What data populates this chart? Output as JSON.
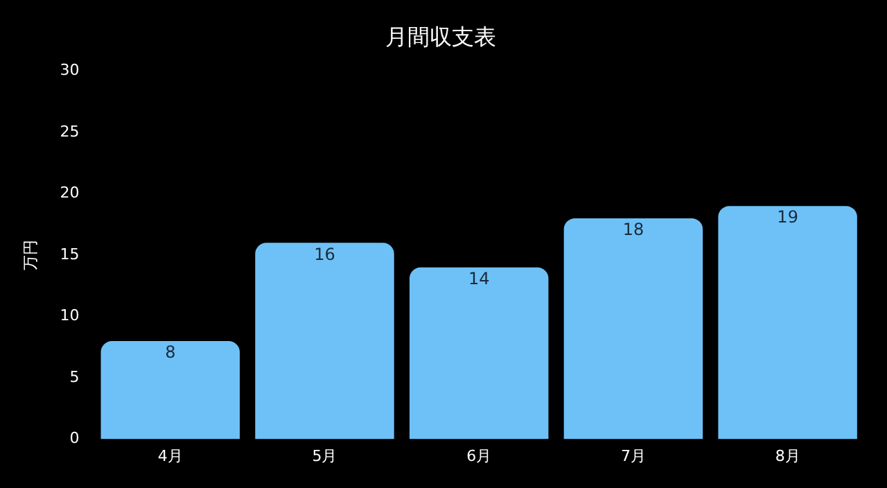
{
  "chart_data": {
    "type": "bar",
    "title": "月間収支表",
    "ylabel": "万円",
    "categories": [
      "4月",
      "5月",
      "6月",
      "7月",
      "8月"
    ],
    "values": [
      8,
      16,
      14,
      18,
      19
    ],
    "color": "#6ec1f7",
    "ylim": [
      0,
      30
    ],
    "yticks": [
      0,
      5,
      10,
      15,
      20,
      25,
      30
    ],
    "grid": false,
    "legend": false,
    "data_labels": true
  }
}
